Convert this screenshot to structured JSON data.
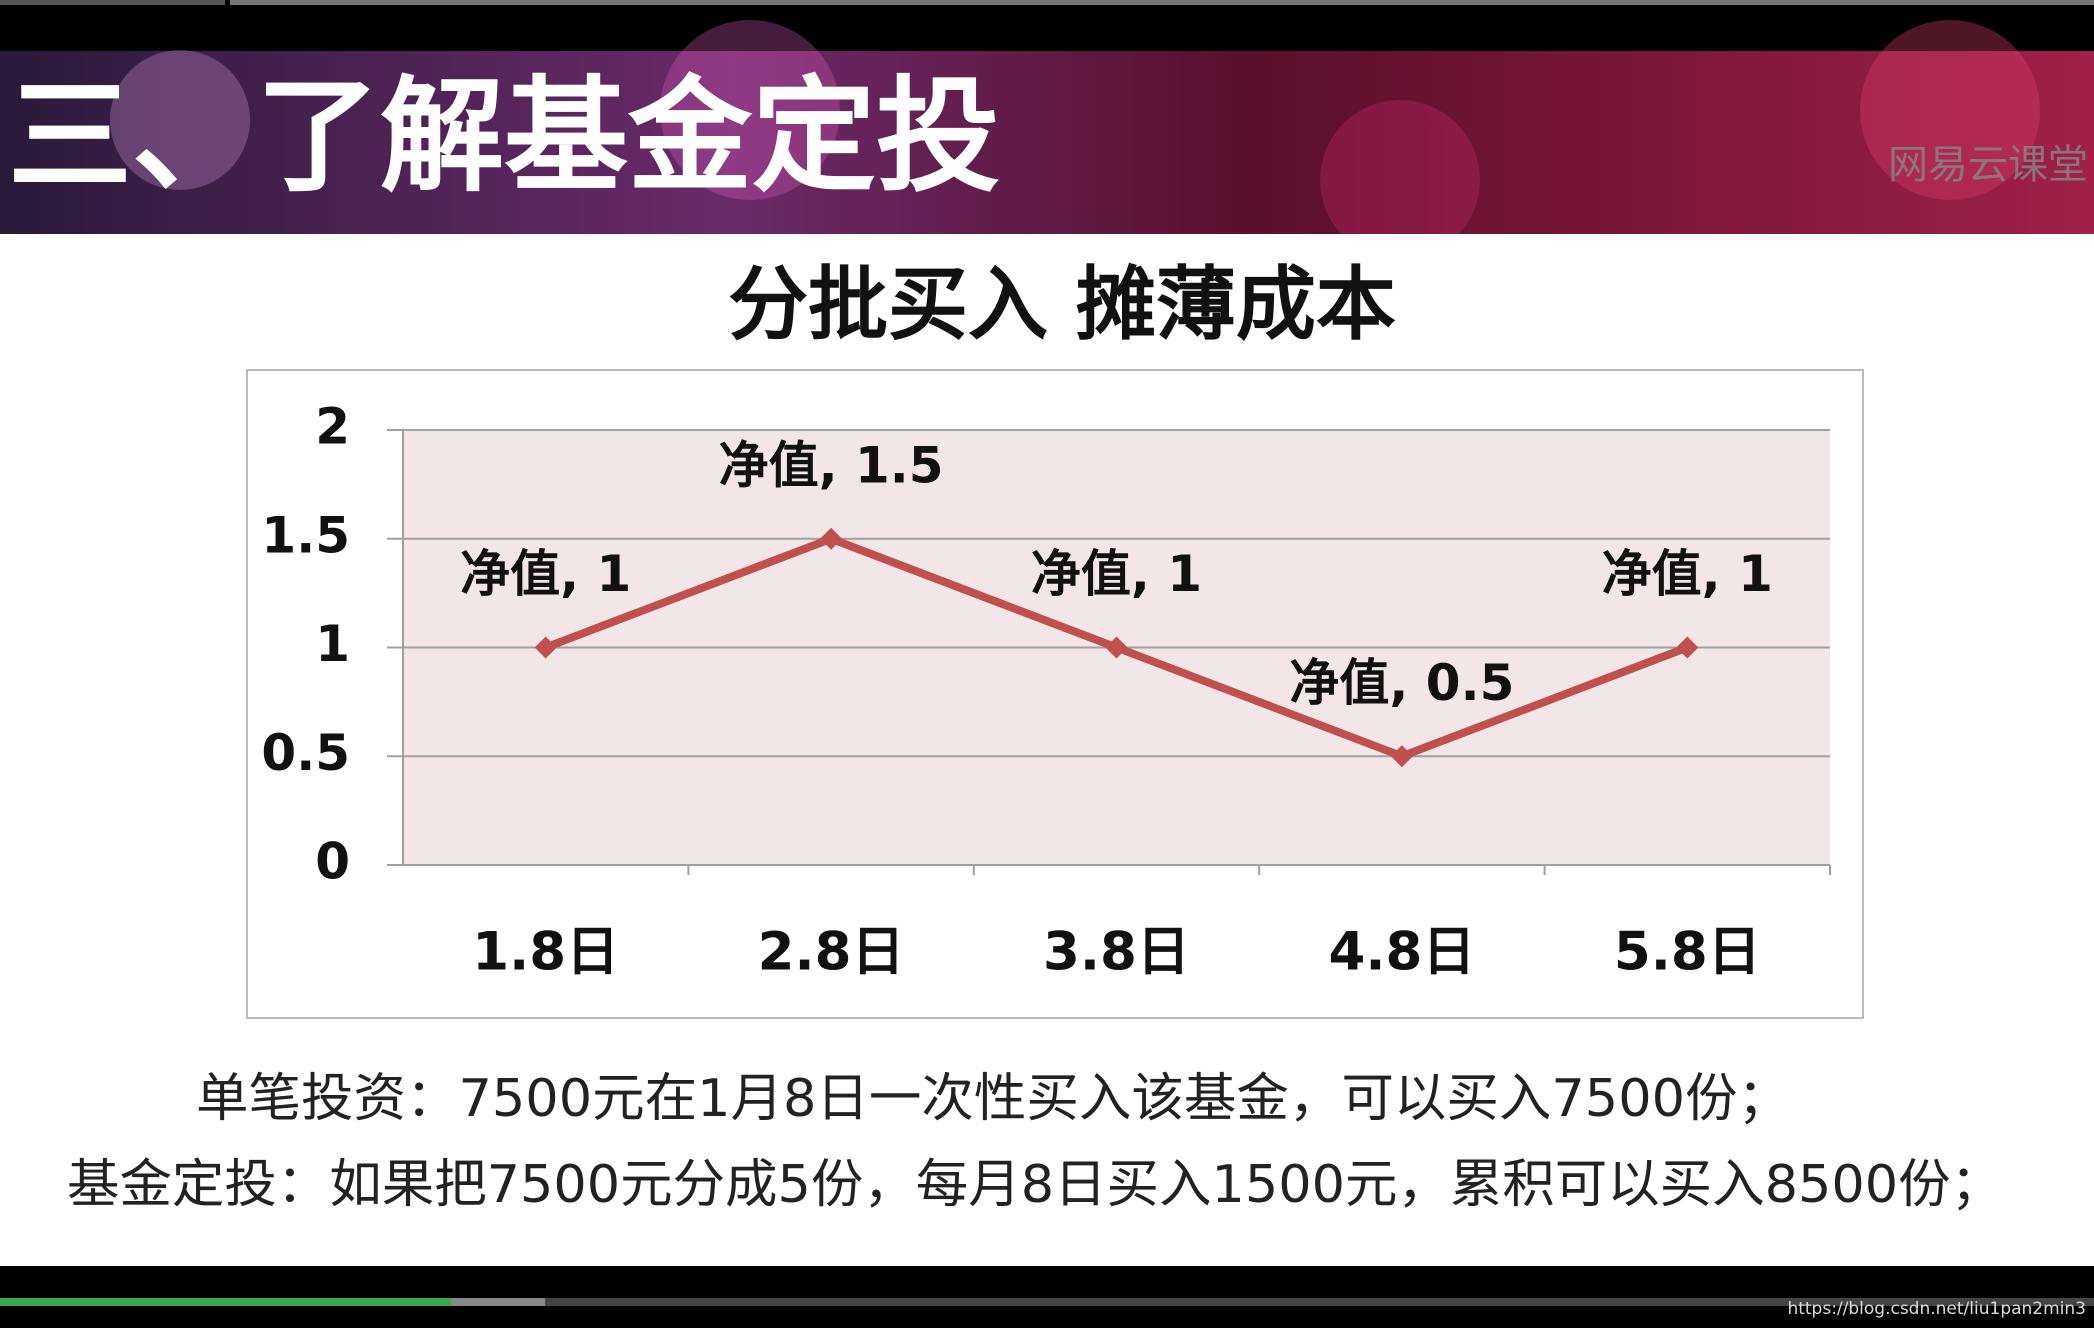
{
  "header": {
    "title": "三、了解基金定投",
    "watermark": "网易云课堂"
  },
  "chart_data": {
    "type": "line",
    "title": "分批买入 摊薄成本",
    "categories": [
      "1.8日",
      "2.8日",
      "3.8日",
      "4.8日",
      "5.8日"
    ],
    "series": [
      {
        "color": "#c0504d",
        "values": [
          1,
          1.5,
          1,
          0.5,
          1
        ],
        "value_labels": [
          "净值, 1",
          "净值, 1.5",
          "净值, 1",
          "净值, 0.5",
          "净值, 1"
        ]
      }
    ],
    "ylim": [
      0,
      2
    ],
    "yticks": [
      0,
      0.5,
      1,
      1.5,
      2
    ],
    "grid": true
  },
  "notes": [
    "单笔投资：7500元在1月8日一次性买入该基金，可以买入7500份；",
    "基金定投：如果把7500元分成5份，每月8日买入1500元，累积可以买入8500份；"
  ],
  "footer": {
    "url": "https://blog.csdn.net/liu1pan2min3"
  }
}
